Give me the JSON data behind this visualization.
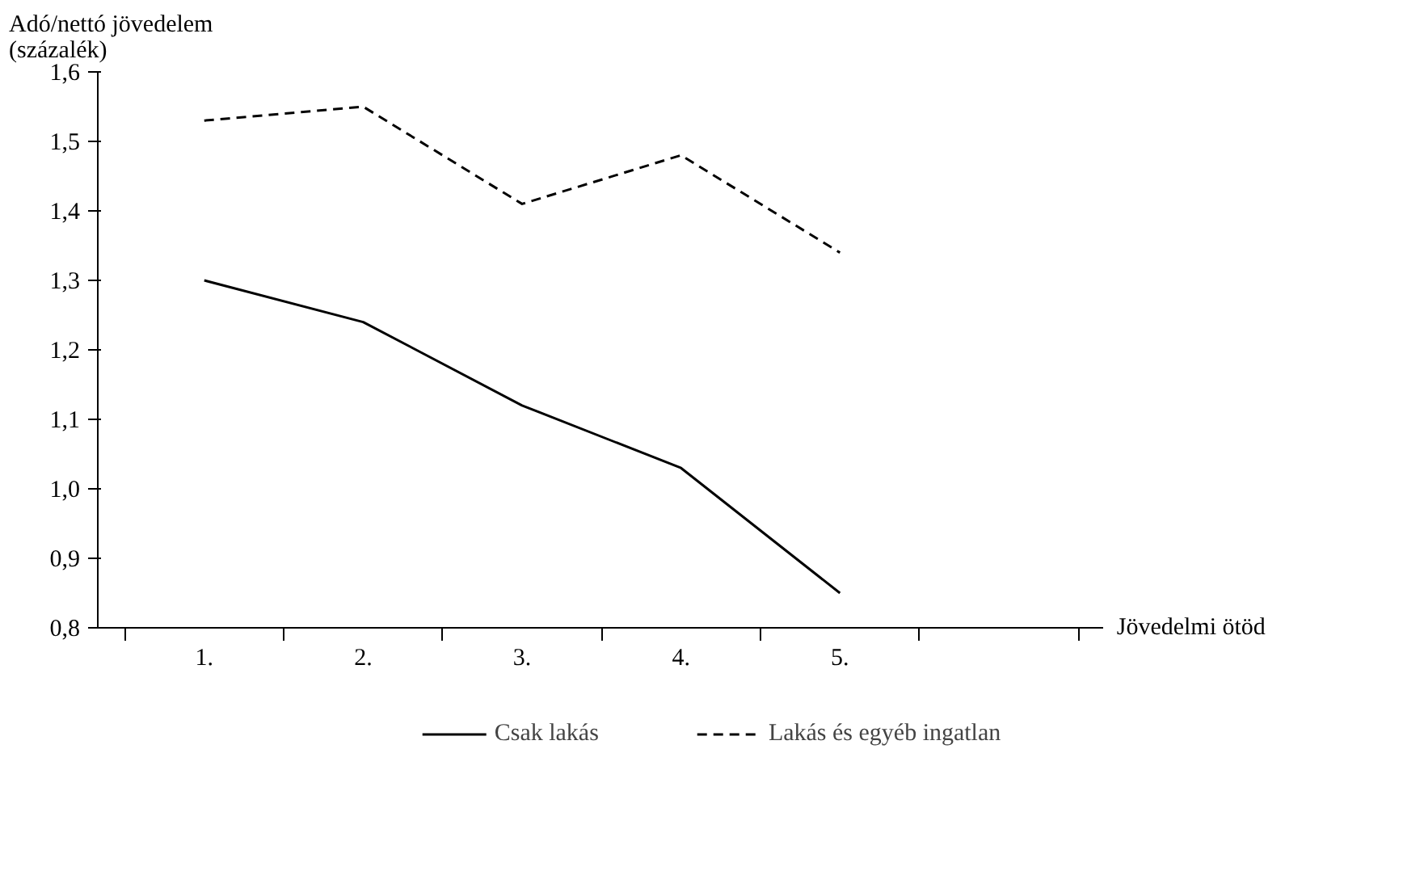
{
  "chart_data": {
    "type": "line",
    "ylabel": "Adó/nettó jövedelem\n(százalék)",
    "annotations": [
      "Jövedelmi ötöd"
    ],
    "categories": [
      "1.",
      "2.",
      "3.",
      "4.",
      "5."
    ],
    "series": [
      {
        "name": "Csak lakás",
        "color": "#000000",
        "line_style": "solid",
        "values": [
          1.3,
          1.24,
          1.12,
          1.03,
          0.85
        ]
      },
      {
        "name": "Lakás és egyéb ingatlan",
        "color": "#000000",
        "line_style": "dashed",
        "values": [
          1.53,
          1.55,
          1.41,
          1.48,
          1.34
        ]
      }
    ],
    "ylim": [
      0.8,
      1.6
    ],
    "yticks": [
      {
        "value": 0.8,
        "label": "0,8"
      },
      {
        "value": 0.9,
        "label": "0,9"
      },
      {
        "value": 1.0,
        "label": "1,0"
      },
      {
        "value": 1.1,
        "label": "1,1"
      },
      {
        "value": 1.2,
        "label": "1,2"
      },
      {
        "value": 1.3,
        "label": "1,3"
      },
      {
        "value": 1.4,
        "label": "1,4"
      },
      {
        "value": 1.5,
        "label": "1,5"
      },
      {
        "value": 1.6,
        "label": "1,6"
      }
    ],
    "grid": false,
    "legend": "bottom",
    "marker": "none"
  }
}
